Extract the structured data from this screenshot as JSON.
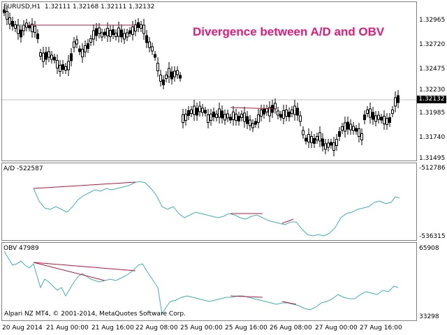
{
  "window": {
    "symbol_label": "EURUSD,H1",
    "ohlc": [
      "1.32111",
      "1.32168",
      "1.32111",
      "1.32132"
    ],
    "current_price": "1.32132"
  },
  "annotation": "Divergence between A/D and OBV",
  "price_axis": [
    "1.32965",
    "1.32720",
    "1.32475",
    "1.32230",
    "1.31985",
    "1.31740",
    "1.31495"
  ],
  "ad_indicator": {
    "title": "A/D -522587",
    "axis_top": "-512786",
    "axis_bottom": "-536315"
  },
  "obv_indicator": {
    "title": "OBV 47989",
    "axis_top": "65908",
    "axis_bottom": "33298"
  },
  "copyright": "Alpari NZ MT4, © 2001-2014, MetaQuotes Software Corp.",
  "time_axis": [
    "20 Aug 2014",
    "21 Aug 00:00",
    "21 Aug 16:00",
    "22 Aug 08:00",
    "25 Aug 00:00",
    "25 Aug 16:00",
    "26 Aug 08:00",
    "27 Aug 00:00",
    "27 Aug 16:00"
  ],
  "colors": {
    "background": "#ffffff",
    "candles": "#000000",
    "indicator_line": "#3cb4b4",
    "divergence_line": "#c0143c",
    "annotation_text": "#e8197a",
    "grid": "#c0c0c0"
  }
}
